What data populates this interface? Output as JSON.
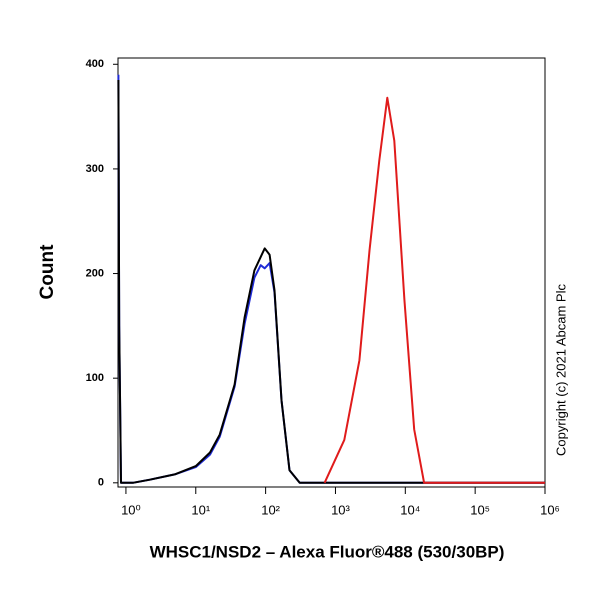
{
  "chart_data": {
    "type": "line",
    "x_label": "WHSC1/NSD2 – Alexa Fluor®488 (530/30BP)",
    "y_label": "Count",
    "annotation": "Copyright (c) 2021 Abcam Plc",
    "x_scale": "log",
    "xlim": [
      0.77,
      1000000
    ],
    "ylim": [
      -4,
      406
    ],
    "xticks": [
      {
        "value": 1,
        "label": "10⁰"
      },
      {
        "value": 10,
        "label": "10¹"
      },
      {
        "value": 100,
        "label": "10²"
      },
      {
        "value": 1000,
        "label": "10³"
      },
      {
        "value": 10000,
        "label": "10⁴"
      },
      {
        "value": 100000,
        "label": "10⁵"
      },
      {
        "value": 1000000,
        "label": "10⁶"
      }
    ],
    "yticks": [
      0,
      100,
      200,
      300,
      400
    ],
    "series": [
      {
        "color": "#1f2bd6",
        "x": [
          0.78,
          0.8,
          0.85,
          1.26,
          2.2,
          5,
          10,
          16,
          22,
          36,
          50,
          69,
          85,
          97,
          114,
          134,
          169,
          220,
          308,
          1000000
        ],
        "values": [
          390,
          150,
          0,
          0,
          3,
          8,
          15,
          27,
          44,
          92,
          152,
          196,
          208,
          205,
          210,
          182,
          79,
          12,
          0,
          0
        ]
      },
      {
        "color": "#000000",
        "x": [
          0.78,
          0.8,
          0.85,
          1.26,
          2.2,
          5,
          10,
          16,
          22,
          36,
          50,
          69,
          97,
          114,
          134,
          169,
          220,
          308,
          1000000
        ],
        "values": [
          385,
          150,
          0,
          0,
          3,
          8,
          16,
          29,
          46,
          94,
          158,
          203,
          224,
          218,
          184,
          79,
          12,
          0,
          0
        ]
      },
      {
        "color": "#e01b1b",
        "x": [
          698,
          1340,
          2200,
          3070,
          4240,
          5530,
          6950,
          9700,
          13400,
          18600,
          1000000
        ],
        "values": [
          0,
          41,
          117,
          222,
          308,
          368,
          327,
          175,
          51,
          0,
          0
        ]
      }
    ]
  }
}
